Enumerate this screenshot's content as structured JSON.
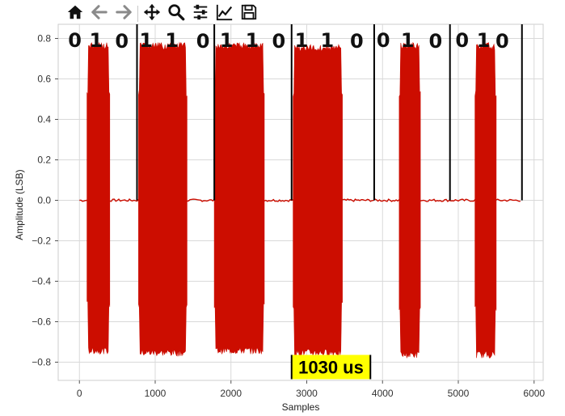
{
  "toolbar": {
    "items": [
      {
        "name": "home-icon",
        "type": "button"
      },
      {
        "name": "back-arrow-icon",
        "type": "button"
      },
      {
        "name": "forward-arrow-icon",
        "type": "button"
      },
      {
        "type": "separator"
      },
      {
        "name": "pan-move-icon",
        "type": "button"
      },
      {
        "name": "zoom-magnifier-icon",
        "type": "button"
      },
      {
        "name": "configure-subplots-icon",
        "type": "button"
      },
      {
        "name": "edit-axis-lines-icon",
        "type": "button"
      },
      {
        "name": "save-floppy-icon",
        "type": "button"
      }
    ]
  },
  "chart_data": {
    "type": "line",
    "xlabel": "Samples",
    "ylabel": "Amplitude (LSB)",
    "xlim": [
      -280,
      6120
    ],
    "ylim": [
      -0.89,
      0.87
    ],
    "xticks": [
      0,
      1000,
      2000,
      3000,
      4000,
      5000,
      6000
    ],
    "yticks": [
      -0.8,
      -0.6,
      -0.4,
      -0.2,
      0.0,
      0.2,
      0.4,
      0.6,
      0.8
    ],
    "grid": true,
    "line_color": "#cc0d00",
    "series": [
      {
        "envelope": {
          "baseline_x": [
            0,
            5830
          ],
          "baseline_amplitude": 0.0,
          "bursts": [
            {
              "x_start": 100,
              "x_end": 400,
              "upper": 0.78,
              "lower": -0.76
            },
            {
              "x_start": 780,
              "x_end": 1420,
              "upper": 0.78,
              "lower": -0.77
            },
            {
              "x_start": 1780,
              "x_end": 2440,
              "upper": 0.78,
              "lower": -0.76
            },
            {
              "x_start": 2820,
              "x_end": 3470,
              "upper": 0.77,
              "lower": -0.77
            },
            {
              "x_start": 4220,
              "x_end": 4500,
              "upper": 0.78,
              "lower": -0.78
            },
            {
              "x_start": 5220,
              "x_end": 5500,
              "upper": 0.78,
              "lower": -0.78
            }
          ]
        }
      }
    ],
    "bit_boundaries": [
      760,
      1780,
      2800,
      3890,
      4890,
      5840
    ],
    "bit_labels": [
      {
        "text": "0",
        "x": -60
      },
      {
        "text": "1",
        "x": 220
      },
      {
        "text": "0",
        "x": 560
      },
      {
        "text": "1",
        "x": 880
      },
      {
        "text": "1",
        "x": 1220
      },
      {
        "text": "0",
        "x": 1630
      },
      {
        "text": "1",
        "x": 1940
      },
      {
        "text": "1",
        "x": 2280
      },
      {
        "text": "0",
        "x": 2630
      },
      {
        "text": "1",
        "x": 2930
      },
      {
        "text": "1",
        "x": 3270
      },
      {
        "text": "0",
        "x": 3660
      },
      {
        "text": "0",
        "x": 4010
      },
      {
        "text": "1",
        "x": 4330
      },
      {
        "text": "0",
        "x": 4700
      },
      {
        "text": "0",
        "x": 5050
      },
      {
        "text": "1",
        "x": 5330
      },
      {
        "text": "0",
        "x": 5580
      }
    ],
    "duration_annotation": {
      "text": "1030 us",
      "x_start": 2800,
      "x_end": 3840,
      "y": -0.82,
      "background": "#ffff00"
    }
  }
}
